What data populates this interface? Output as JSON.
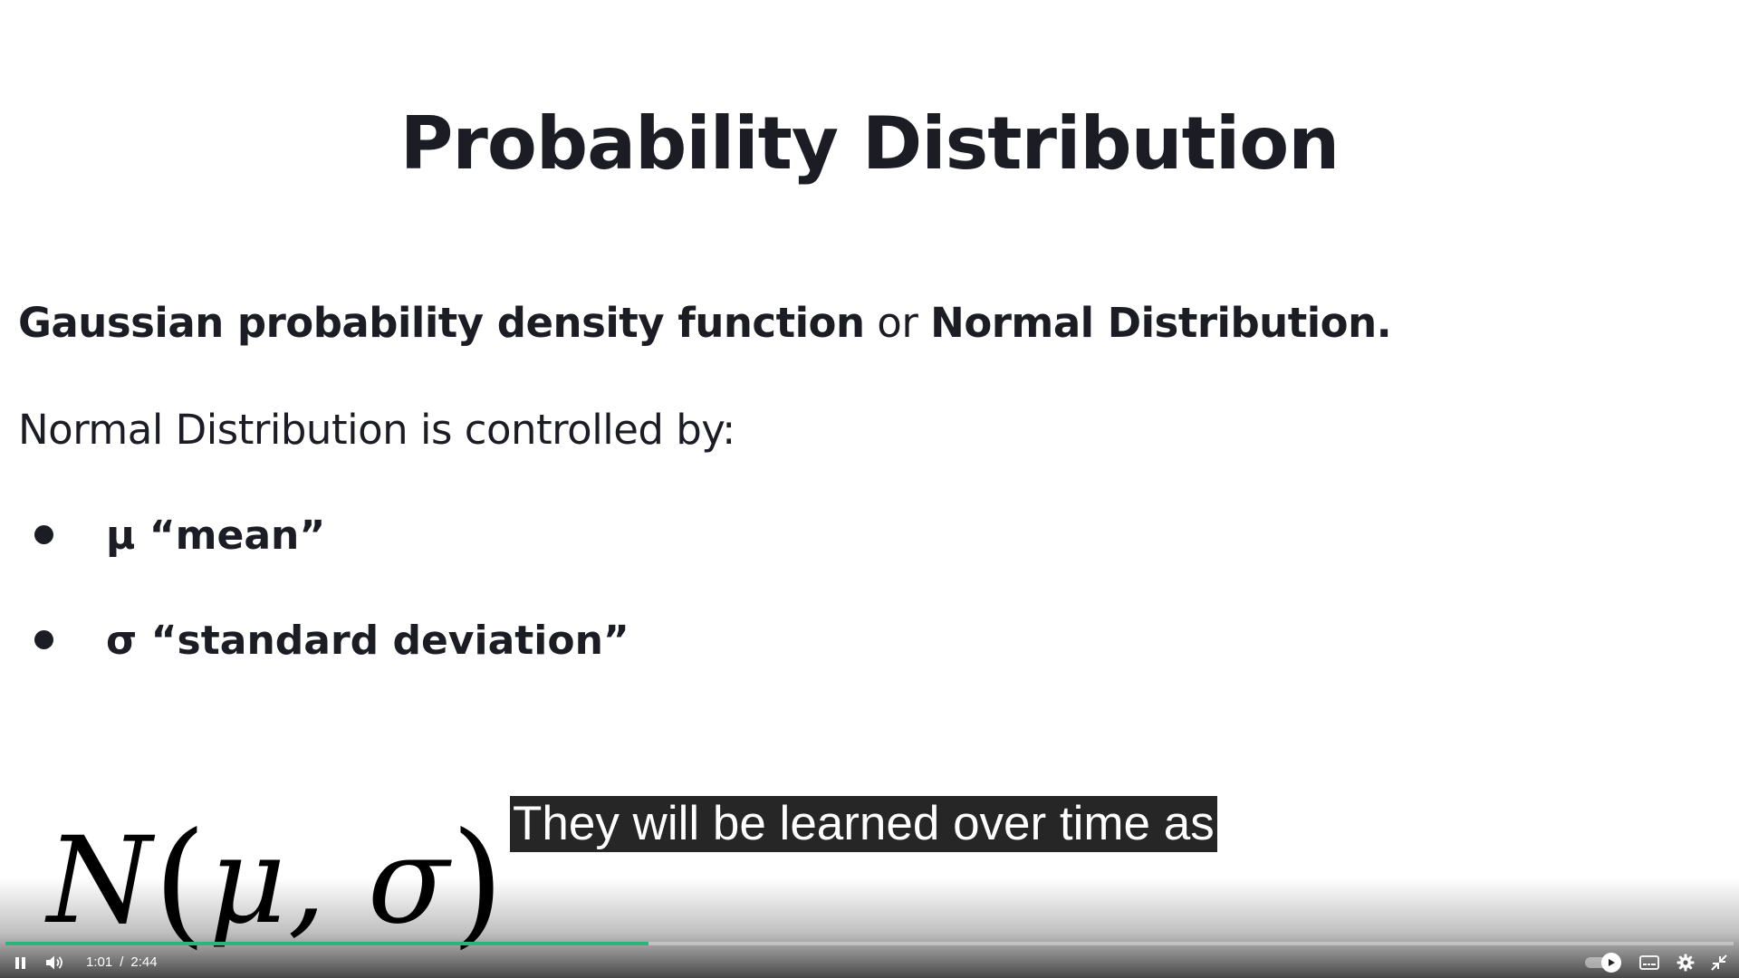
{
  "slide": {
    "title": "Probability Distribution",
    "subtitle_part1": "Gaussian probability density function",
    "subtitle_connector": " or ",
    "subtitle_part2": "Normal Distribution.",
    "controlled_by": "Normal Distribution is controlled by:",
    "bullets": [
      {
        "symbol": "μ",
        "label": "“mean”"
      },
      {
        "symbol": "σ",
        "label": "“standard deviation”"
      }
    ],
    "formula": {
      "letter": "N",
      "open": "(",
      "arg1": "μ",
      "comma": ",",
      "arg2": "σ",
      "close": ")"
    }
  },
  "caption": {
    "text": "They will be learned over time as"
  },
  "player": {
    "current_time": "1:01",
    "separator": "/",
    "duration": "2:44",
    "progress_fraction": 0.372,
    "progress_color": "#2ab57d",
    "icons": {
      "play_pause": "pause-icon",
      "volume": "volume-icon",
      "autoplay": "autoplay-toggle",
      "subtitles": "subtitles-icon",
      "settings": "gear-icon",
      "fullscreen": "exit-fullscreen-icon"
    }
  }
}
